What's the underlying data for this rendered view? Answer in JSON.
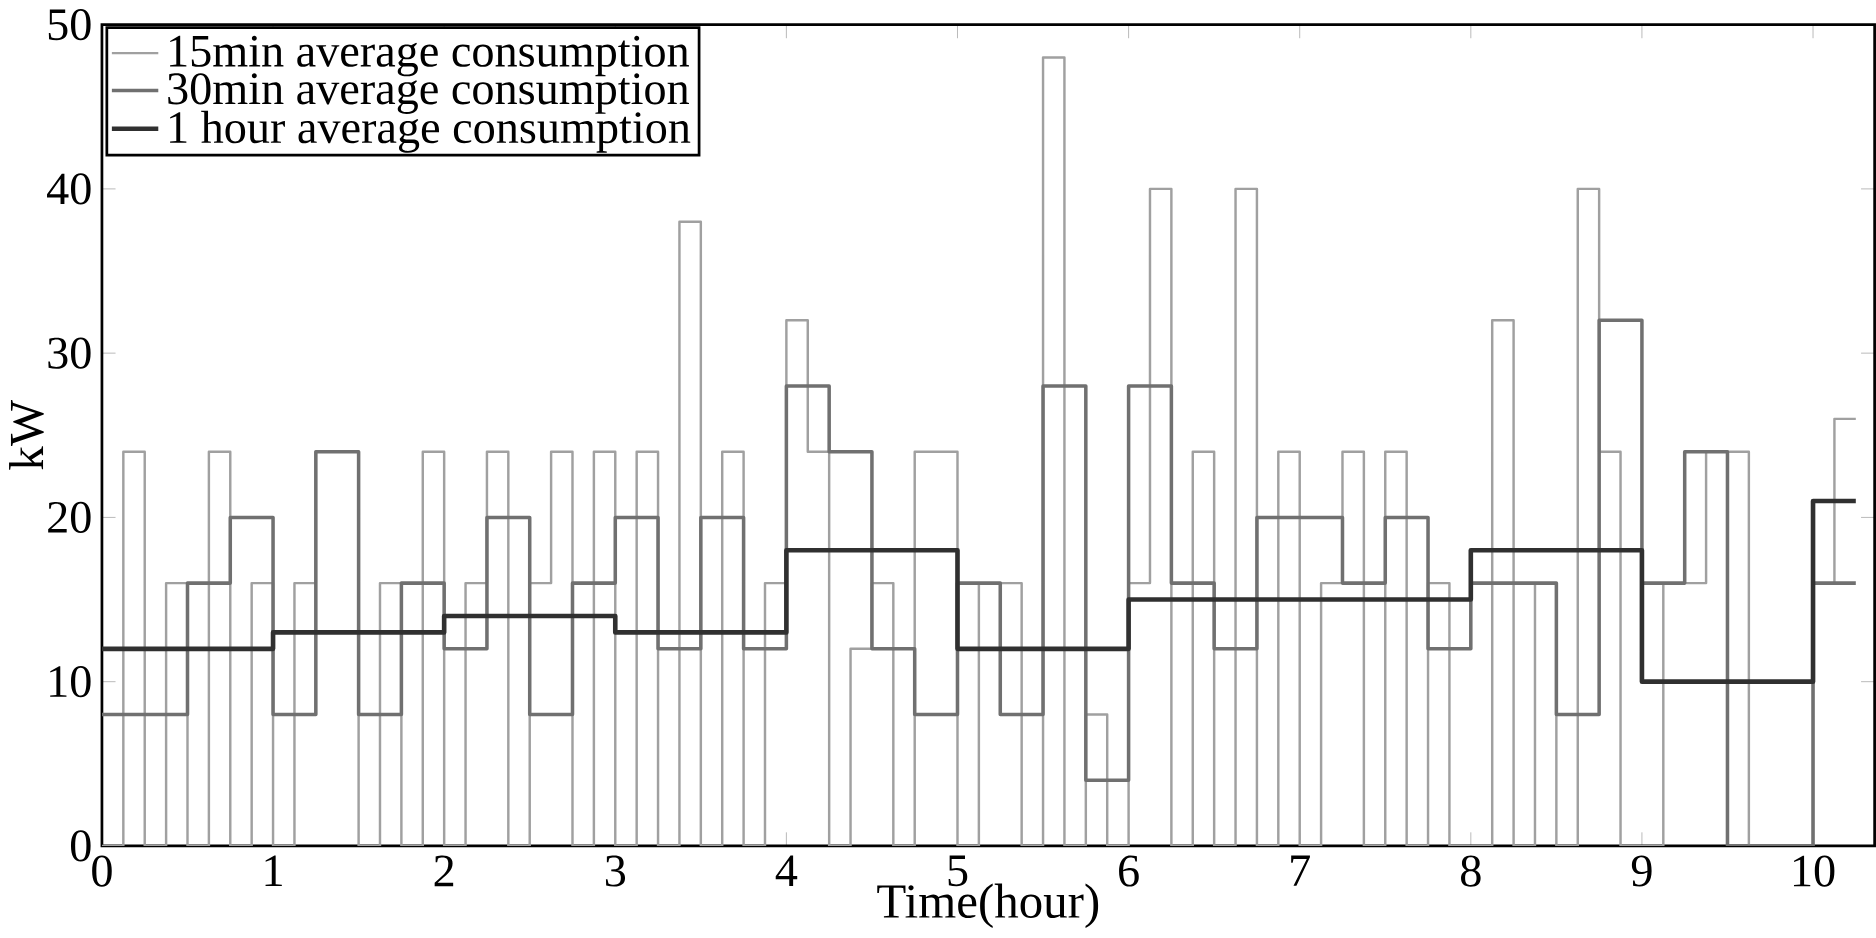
{
  "chart_data": {
    "type": "step",
    "xlabel": "Time(hour)",
    "ylabel": "kW",
    "xlim": [
      0,
      10.36
    ],
    "ylim": [
      0,
      50
    ],
    "xticks": [
      0,
      1,
      2,
      3,
      4,
      5,
      6,
      7,
      8,
      9,
      10
    ],
    "yticks": [
      0,
      10,
      20,
      30,
      40,
      50
    ],
    "legend": "top left",
    "grid": false,
    "series": [
      {
        "name": "15min average consumption",
        "color": "#a0a0a0",
        "x": [
          0,
          0.125,
          0.25,
          0.375,
          0.5,
          0.625,
          0.75,
          0.875,
          1,
          1.125,
          1.25,
          1.375,
          1.5,
          1.625,
          1.75,
          1.875,
          2,
          2.125,
          2.25,
          2.375,
          2.5,
          2.625,
          2.75,
          2.875,
          3,
          3.125,
          3.25,
          3.375,
          3.5,
          3.625,
          3.75,
          3.875,
          4,
          4.125,
          4.25,
          4.375,
          4.5,
          4.625,
          4.75,
          4.875,
          5,
          5.125,
          5.25,
          5.375,
          5.5,
          5.625,
          5.75,
          5.875,
          6,
          6.125,
          6.25,
          6.375,
          6.5,
          6.625,
          6.75,
          6.875,
          7,
          7.125,
          7.25,
          7.375,
          7.5,
          7.625,
          7.75,
          7.875,
          8,
          8.125,
          8.25,
          8.375,
          8.5,
          8.625,
          8.75,
          8.875,
          9,
          9.125,
          9.25,
          9.375,
          9.5,
          9.625,
          9.75,
          9.875,
          10,
          10.125,
          10.25
        ],
        "values": [
          0,
          24,
          0,
          16,
          0,
          24,
          0,
          16,
          0,
          16,
          24,
          24,
          0,
          16,
          0,
          24,
          0,
          16,
          24,
          0,
          16,
          24,
          0,
          24,
          0,
          24,
          0,
          38,
          0,
          24,
          0,
          16,
          32,
          24,
          0,
          12,
          16,
          0,
          24,
          24,
          0,
          16,
          16,
          0,
          48,
          0,
          8,
          0,
          16,
          40,
          0,
          24,
          0,
          40,
          0,
          24,
          0,
          16,
          24,
          0,
          24,
          0,
          16,
          0,
          0,
          32,
          0,
          16,
          0,
          40,
          24,
          0,
          0,
          16,
          16,
          24,
          24,
          0,
          0,
          0,
          16,
          26,
          26
        ]
      },
      {
        "name": "30min average consumption",
        "color": "#707070",
        "x": [
          0,
          0.25,
          0.5,
          0.75,
          1,
          1.25,
          1.5,
          1.75,
          2,
          2.25,
          2.5,
          2.75,
          3,
          3.25,
          3.5,
          3.75,
          4,
          4.25,
          4.5,
          4.75,
          5,
          5.25,
          5.5,
          5.75,
          6,
          6.25,
          6.5,
          6.75,
          7,
          7.25,
          7.5,
          7.75,
          8,
          8.25,
          8.5,
          8.75,
          9,
          9.25,
          9.5,
          9.75,
          10,
          10.25
        ],
        "values": [
          8,
          8,
          16,
          20,
          8,
          24,
          8,
          16,
          12,
          20,
          8,
          16,
          20,
          12,
          20,
          12,
          28,
          24,
          12,
          8,
          16,
          8,
          28,
          4,
          28,
          16,
          12,
          20,
          20,
          16,
          20,
          12,
          16,
          16,
          8,
          32,
          16,
          24,
          0,
          0,
          16,
          16
        ]
      },
      {
        "name": "1 hour average consumption",
        "color": "#303030",
        "x": [
          0,
          1,
          2,
          3,
          4,
          5,
          6,
          7,
          8,
          9,
          10,
          10.25
        ],
        "values": [
          12,
          13,
          14,
          13,
          18,
          12,
          15,
          15,
          18,
          10,
          21,
          21
        ]
      }
    ]
  }
}
